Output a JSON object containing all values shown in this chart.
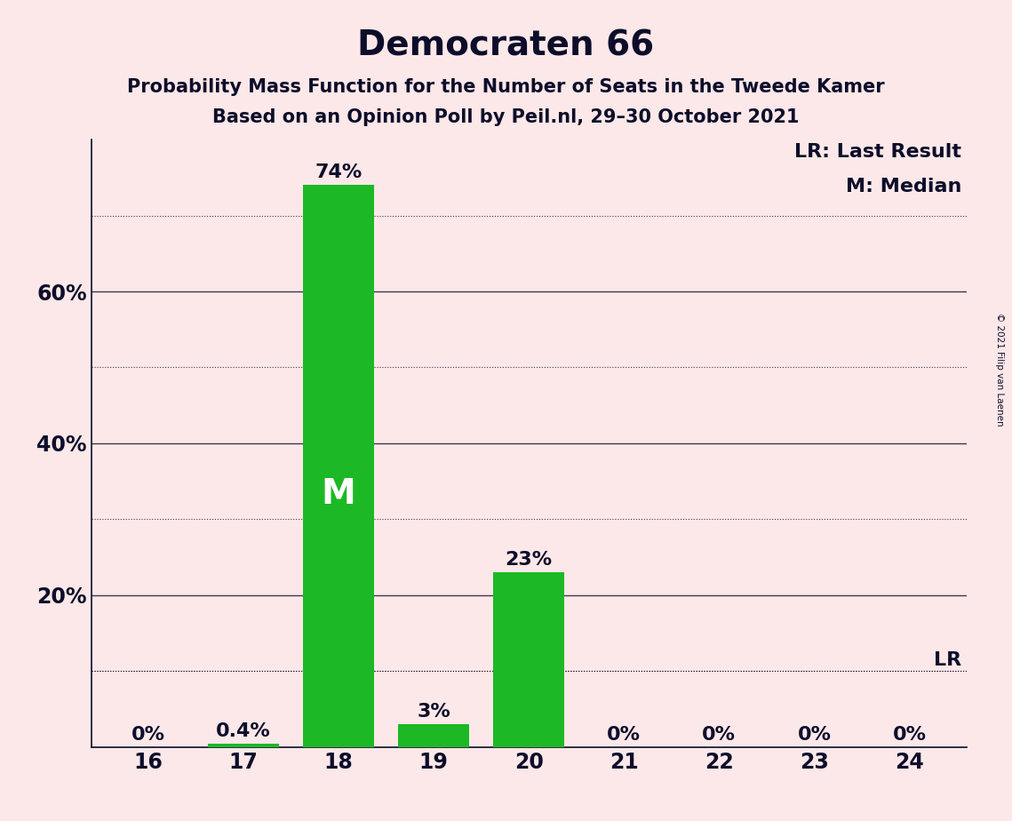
{
  "title": "Democraten 66",
  "subtitle1": "Probability Mass Function for the Number of Seats in the Tweede Kamer",
  "subtitle2": "Based on an Opinion Poll by Peil.nl, 29–30 October 2021",
  "copyright": "© 2021 Filip van Laenen",
  "seats": [
    16,
    17,
    18,
    19,
    20,
    21,
    22,
    23,
    24
  ],
  "probabilities": [
    0.0,
    0.4,
    74.0,
    3.0,
    23.0,
    0.0,
    0.0,
    0.0,
    0.0
  ],
  "bar_labels": [
    "0%",
    "0.4%",
    "74%",
    "3%",
    "23%",
    "0%",
    "0%",
    "0%",
    "0%"
  ],
  "bar_color": "#1db825",
  "median_seat": 18,
  "last_result_value": 10.0,
  "legend_lr": "LR: Last Result",
  "legend_m": "M: Median",
  "background_color": "#fce8e8",
  "title_fontsize": 28,
  "subtitle_fontsize": 15,
  "label_fontsize": 16,
  "tick_fontsize": 17,
  "legend_fontsize": 16,
  "solid_yticks": [
    20,
    40,
    60
  ],
  "dotted_yticks": [
    10,
    30,
    50,
    70
  ],
  "ylim": [
    0,
    80
  ],
  "xlim": [
    15.4,
    24.6
  ],
  "text_color": "#0d0d2b"
}
